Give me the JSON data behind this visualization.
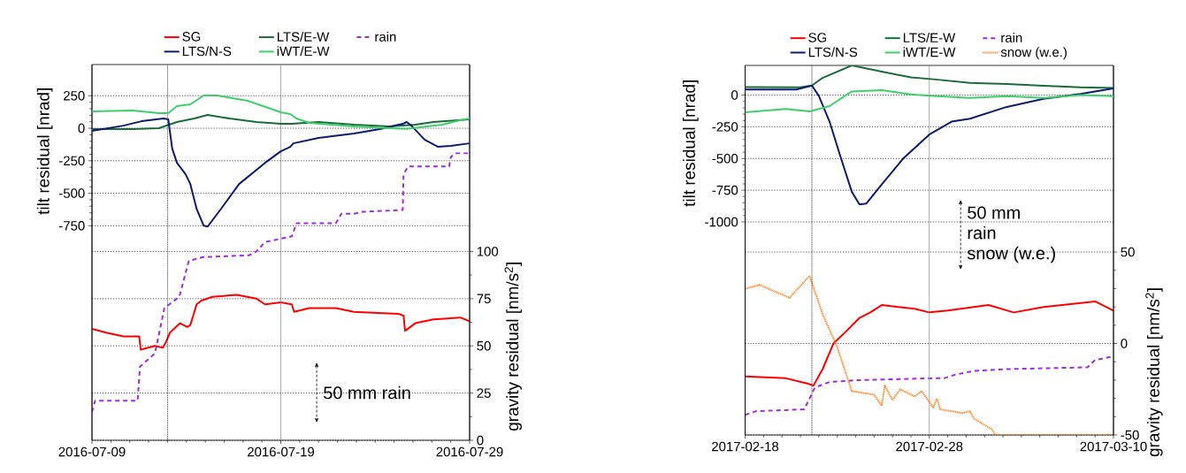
{
  "chart_data": [
    {
      "type": "line",
      "ylabel": "tilt residual [nrad]",
      "y2label": "gravity residual [nm/s$^{2}$]",
      "xlim": [
        "2016-07-09",
        "2016-07-29"
      ],
      "xticks": [
        "2016-07-09",
        "2016-07-19",
        "2016-07-29"
      ],
      "ylim": [
        -2400,
        490
      ],
      "yticks": [
        250,
        0,
        -250,
        -500,
        -750
      ],
      "y2lim": [
        0,
        199
      ],
      "y2ticks": [
        0,
        25,
        50,
        75,
        100
      ],
      "grid": "y",
      "legend": "top",
      "ref_lines": [
        {
          "axis": "x",
          "value": "2016-07-13",
          "line_style": "dotted",
          "color": "#000000"
        },
        {
          "axis": "x",
          "value": "2016-07-19",
          "line_style": "solid",
          "color": "#888888"
        }
      ],
      "annotations": [
        "50 mm rain"
      ],
      "series": [
        {
          "name": "SG",
          "color": "#ff0000",
          "axis": "y2",
          "line_style": "solid",
          "x": [
            "2016-07-09T00:00",
            "2016-07-09T18:00",
            "2016-07-10T16:00",
            "2016-07-11T12:00",
            "2016-07-11T14:00",
            "2016-07-12T08:00",
            "2016-07-12T18:00",
            "2016-07-12T22:00",
            "2016-07-13T03:00",
            "2016-07-13T16:00",
            "2016-07-14T01:00",
            "2016-07-14T05:00",
            "2016-07-14T13:00",
            "2016-07-14T19:00",
            "2016-07-15T09:00",
            "2016-07-16T16:00",
            "2016-07-17T17:00",
            "2016-07-18T04:00",
            "2016-07-19T00:00",
            "2016-07-19T14:00",
            "2016-07-19T17:00",
            "2016-07-20T12:00",
            "2016-07-21T22:00",
            "2016-07-22T21:00",
            "2016-07-25T05:00",
            "2016-07-25T12:00",
            "2016-07-25T14:00",
            "2016-07-26T03:00",
            "2016-07-27T02:00",
            "2016-07-28T12:00",
            "2016-07-29T00:00"
          ],
          "values": [
            59,
            57,
            55,
            55,
            48,
            50,
            49,
            52,
            57,
            62,
            60,
            61,
            72,
            74,
            76,
            77,
            75,
            72,
            73,
            72,
            68,
            70,
            70,
            68,
            67,
            66,
            58,
            62,
            64,
            65,
            63
          ]
        },
        {
          "name": "LTS/E-W",
          "color": "#1a6b3a",
          "line_style": "solid",
          "x": [
            "2016-07-09T00:00",
            "2016-07-11T04:00",
            "2016-07-12T13:00",
            "2016-07-13T12:00",
            "2016-07-14T10:00",
            "2016-07-15T03:00",
            "2016-07-16T07:00",
            "2016-07-17T17:00",
            "2016-07-19T00:00",
            "2016-07-19T14:00",
            "2016-07-21T00:00",
            "2016-07-22T21:00",
            "2016-07-24T18:00",
            "2016-07-26T03:00",
            "2016-07-27T02:00",
            "2016-07-29T00:00"
          ],
          "values": [
            -7,
            -7,
            0,
            48,
            75,
            102,
            75,
            48,
            34,
            34,
            48,
            27,
            14,
            27,
            48,
            68
          ]
        },
        {
          "name": "rain",
          "color": "#9b30d9",
          "axis": "y2",
          "line_style": "dashed",
          "x": [
            "2016-07-09T00:00",
            "2016-07-09T04:00",
            "2016-07-11T10:00",
            "2016-07-11T13:00",
            "2016-07-12T08:00",
            "2016-07-12T20:00",
            "2016-07-13T15:00",
            "2016-07-14T03:00",
            "2016-07-14T21:00",
            "2016-07-17T08:00",
            "2016-07-17T17:00",
            "2016-07-18T04:00",
            "2016-07-19T14:00",
            "2016-07-19T20:00",
            "2016-07-21T22:00",
            "2016-07-22T05:00",
            "2016-07-22T21:00",
            "2016-07-23T08:00",
            "2016-07-25T11:00",
            "2016-07-25T12:00",
            "2016-07-25T18:00",
            "2016-07-27T22:00",
            "2016-07-28T00:00",
            "2016-07-28T06:00",
            "2016-07-29T00:00"
          ],
          "values": [
            15,
            21,
            21,
            39,
            46,
            70,
            76,
            95,
            97,
            98,
            100,
            105,
            108,
            115,
            115,
            120,
            120,
            121,
            122,
            141,
            145,
            145,
            150,
            152,
            152
          ]
        },
        {
          "name": "LTS/N-S",
          "color": "#0d1a6e",
          "line_style": "solid",
          "x": [
            "2016-07-09T00:00",
            "2016-07-10T16:00",
            "2016-07-11T15:00",
            "2016-07-12T19:00",
            "2016-07-13T01:00",
            "2016-07-13T06:00",
            "2016-07-13T12:00",
            "2016-07-13T23:00",
            "2016-07-14T05:00",
            "2016-07-14T13:00",
            "2016-07-14T22:00",
            "2016-07-15T03:00",
            "2016-07-15T20:00",
            "2016-07-16T19:00",
            "2016-07-18T04:00",
            "2016-07-19T00:00",
            "2016-07-19T12:00",
            "2016-07-19T16:00",
            "2016-07-21T00:00",
            "2016-07-22T21:00",
            "2016-07-24T06:00",
            "2016-07-25T11:00",
            "2016-07-25T16:00",
            "2016-07-25T22:00",
            "2016-07-26T15:00",
            "2016-07-27T08:00",
            "2016-07-28T00:00",
            "2016-07-29T00:00"
          ],
          "values": [
            -20,
            20,
            54,
            75,
            68,
            -157,
            -266,
            -354,
            -429,
            -620,
            -750,
            -756,
            -620,
            -429,
            -266,
            -177,
            -143,
            -116,
            -75,
            -41,
            -7,
            34,
            48,
            20,
            -89,
            -143,
            -136,
            -116
          ]
        },
        {
          "name": "iWT/E-W",
          "color": "#3ecf6a",
          "line_style": "solid",
          "x": [
            "2016-07-09T00:00",
            "2016-07-11T04:00",
            "2016-07-12T13:00",
            "2016-07-13T01:00",
            "2016-07-13T12:00",
            "2016-07-14T05:00",
            "2016-07-14T22:00",
            "2016-07-15T15:00",
            "2016-07-17T06:00",
            "2016-07-19T00:00",
            "2016-07-19T12:00",
            "2016-07-19T20:00",
            "2016-07-20T12:00",
            "2016-07-22T21:00",
            "2016-07-24T18:00",
            "2016-07-25T16:00",
            "2016-07-27T13:00",
            "2016-07-28T12:00",
            "2016-07-29T00:00"
          ],
          "values": [
            129,
            136,
            116,
            116,
            170,
            184,
            252,
            252,
            211,
            123,
            109,
            75,
            41,
            14,
            0,
            -5,
            27,
            61,
            75
          ]
        }
      ]
    },
    {
      "type": "line",
      "ylabel": "tilt residual [nrad]",
      "y2label": "gravity residual [nm/s$^{2}$]",
      "xlim": [
        "2017-02-18",
        "2017-03-10"
      ],
      "xticks": [
        "2017-02-18",
        "2017-02-28",
        "2017-03-10"
      ],
      "ylim": [
        -2680,
        234
      ],
      "yticks": [
        0,
        -250,
        -500,
        -750,
        -1000
      ],
      "y2lim": [
        -50,
        152
      ],
      "y2ticks": [
        -50,
        0,
        50
      ],
      "grid": "y",
      "legend": "top",
      "ref_lines": [
        {
          "axis": "x",
          "value": "2017-02-21T15:00",
          "line_style": "dotted",
          "color": "#000000"
        },
        {
          "axis": "x",
          "value": "2017-02-28",
          "line_style": "solid",
          "color": "#888888"
        }
      ],
      "annotations": [
        "50 mm",
        "rain",
        "snow (w.e.)"
      ],
      "series": [
        {
          "name": "SG",
          "color": "#ff0000",
          "axis": "y2",
          "line_style": "solid",
          "x": [
            "2017-02-18T00:00",
            "2017-02-20T05:00",
            "2017-02-21T10:00",
            "2017-02-21T17:00",
            "2017-02-22T05:00",
            "2017-02-22T19:00",
            "2017-02-23T10:00",
            "2017-02-24T05:00",
            "2017-02-24T19:00",
            "2017-02-25T10:00",
            "2017-02-27T05:00",
            "2017-02-28T00:00",
            "2017-03-01T00:00",
            "2017-03-03T05:00",
            "2017-03-04T14:00",
            "2017-03-06T05:00",
            "2017-03-09T00:00",
            "2017-03-10T00:00"
          ],
          "values": [
            -18,
            -19,
            -22,
            -23,
            -14,
            0,
            6,
            14,
            17,
            21,
            19,
            17,
            18,
            21,
            17,
            20,
            23,
            18
          ]
        },
        {
          "name": "LTS/E-W",
          "color": "#1a6b3a",
          "line_style": "solid",
          "x": [
            "2017-02-18T00:00",
            "2017-02-21T00:00",
            "2017-02-21T15:00",
            "2017-02-22T05:00",
            "2017-02-23T19:00",
            "2017-02-25T10:00",
            "2017-02-27T00:00",
            "2017-02-28T05:00",
            "2017-03-02T05:00",
            "2017-03-04T05:00",
            "2017-03-06T05:00",
            "2017-03-08T05:00",
            "2017-03-10T00:00"
          ],
          "values": [
            64,
            62,
            75,
            136,
            234,
            185,
            140,
            125,
            96,
            87,
            73,
            61,
            57
          ]
        },
        {
          "name": "rain",
          "color": "#9b30d9",
          "axis": "y2",
          "line_style": "dashed",
          "x": [
            "2017-02-18T00:00",
            "2017-02-18T14:00",
            "2017-02-21T05:00",
            "2017-02-21T12:00",
            "2017-02-21T19:00",
            "2017-02-22T14:00",
            "2017-02-24T05:00",
            "2017-02-28T05:00",
            "2017-02-28T19:00",
            "2017-03-01T10:00",
            "2017-03-02T10:00",
            "2017-03-04T05:00",
            "2017-03-08T14:00",
            "2017-03-09T00:00",
            "2017-03-10T00:00"
          ],
          "values": [
            -39,
            -37,
            -36,
            -30,
            -24,
            -21,
            -20,
            -19,
            -19,
            -17,
            -15,
            -14,
            -13,
            -9,
            -7
          ]
        },
        {
          "name": "LTS/N-S",
          "color": "#0d1a6e",
          "line_style": "solid",
          "x": [
            "2017-02-18T00:00",
            "2017-02-20T19:00",
            "2017-02-21T15:00",
            "2017-02-22T00:00",
            "2017-02-22T14:00",
            "2017-02-23T05:00",
            "2017-02-23T19:00",
            "2017-02-24T05:00",
            "2017-02-24T14:00",
            "2017-02-25T10:00",
            "2017-02-26T14:00",
            "2017-02-28T00:00",
            "2017-03-01T05:00",
            "2017-03-02T05:00",
            "2017-03-04T05:00",
            "2017-03-06T05:00",
            "2017-03-08T05:00",
            "2017-03-10T00:00"
          ],
          "values": [
            44,
            44,
            75,
            -6,
            -209,
            -500,
            -762,
            -863,
            -855,
            -704,
            -500,
            -311,
            -209,
            -186,
            -93,
            -29,
            9,
            52
          ]
        },
        {
          "name": "iWT/E-W",
          "color": "#3ecf6a",
          "line_style": "solid",
          "x": [
            "2017-02-18T00:00",
            "2017-02-20T05:00",
            "2017-02-21T12:00",
            "2017-02-22T14:00",
            "2017-02-23T19:00",
            "2017-02-25T10:00",
            "2017-02-27T00:00",
            "2017-02-28T05:00",
            "2017-03-02T05:00",
            "2017-03-04T05:00",
            "2017-03-06T05:00",
            "2017-03-08T05:00",
            "2017-03-10T00:00"
          ],
          "values": [
            -136,
            -110,
            -128,
            -87,
            29,
            38,
            6,
            -6,
            -23,
            -9,
            -23,
            0,
            -9
          ]
        },
        {
          "name": "snow (w.e.)",
          "color": "#ff7f1a",
          "axis": "y2",
          "line_style": "dotted",
          "x": [
            "2017-02-18T00:00",
            "2017-02-18T19:00",
            "2017-02-20T10:00",
            "2017-02-21T12:00",
            "2017-02-22T05:00",
            "2017-02-23T00:00",
            "2017-02-23T19:00",
            "2017-02-25T00:00",
            "2017-02-25T10:00",
            "2017-02-25T14:00",
            "2017-02-26T00:00",
            "2017-02-26T10:00",
            "2017-02-27T05:00",
            "2017-02-27T14:00",
            "2017-02-28T05:00",
            "2017-02-28T10:00",
            "2017-02-28T14:00",
            "2017-03-01T19:00",
            "2017-03-02T05:00",
            "2017-03-02T10:00",
            "2017-03-03T10:00",
            "2017-03-03T14:00",
            "2017-03-10T00:00"
          ],
          "values": [
            30,
            32,
            25,
            37,
            16,
            -2,
            -26,
            -28,
            -34,
            -23,
            -31,
            -25,
            -29,
            -26,
            -35,
            -30,
            -36,
            -38,
            -37,
            -41,
            -47,
            -50,
            -50
          ]
        }
      ]
    }
  ]
}
